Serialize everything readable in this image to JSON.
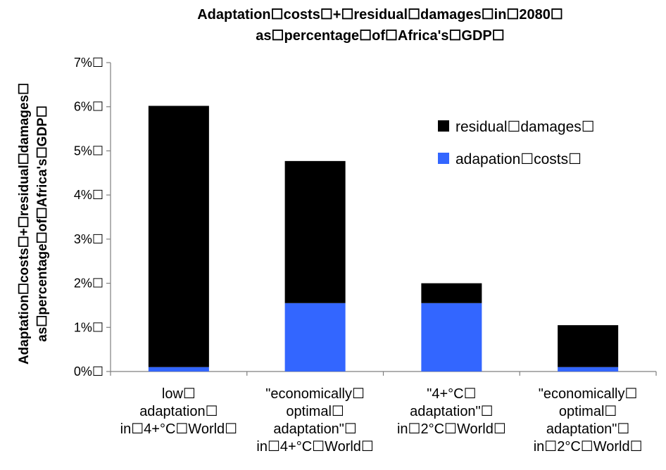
{
  "chart_data": {
    "type": "bar",
    "stacked": true,
    "title_lines": [
      "Adaptation☐costs☐+☐residual☐damages☐in☐2080☐",
      "as☐percentage☐of☐Africa's☐GDP☐"
    ],
    "ylabel_lines": [
      "Adaptation☐costs☐+☐residual☐damages☐",
      "as☐percentage☐of☐Africa's☐GDP☐"
    ],
    "ylim": [
      0,
      7
    ],
    "yticks": [
      {
        "value": 0,
        "label": "0%☐"
      },
      {
        "value": 1,
        "label": "1%☐"
      },
      {
        "value": 2,
        "label": "2%☐"
      },
      {
        "value": 3,
        "label": "3%☐"
      },
      {
        "value": 4,
        "label": "4%☐"
      },
      {
        "value": 5,
        "label": "5%☐"
      },
      {
        "value": 6,
        "label": "6%☐"
      },
      {
        "value": 7,
        "label": "7%☐"
      }
    ],
    "categories": [
      [
        "low☐",
        "adaptation☐",
        "in☐4+°C☐World☐"
      ],
      [
        "\"economically☐",
        "optimal☐",
        "adaptation\"☐",
        "in☐4+°C☐World☐"
      ],
      [
        "\"4+°C☐",
        "adaptation\"☐",
        "in☐2°C☐World☐"
      ],
      [
        "\"economically☐",
        "optimal☐",
        "adaptation\"☐",
        "in☐2°C☐World☐"
      ]
    ],
    "series": [
      {
        "name": "adapation☐costs☐",
        "color": "#3366ff",
        "values": [
          0.1,
          1.55,
          1.55,
          0.1
        ]
      },
      {
        "name": "residual☐damages☐",
        "color": "#000000",
        "values": [
          5.92,
          3.22,
          0.45,
          0.95
        ]
      }
    ],
    "legend": {
      "placement": "top-right",
      "entries": [
        {
          "label": "residual☐damages☐",
          "color": "#000000"
        },
        {
          "label": "adapation☐costs☐",
          "color": "#3366ff"
        }
      ]
    },
    "grid": false
  }
}
